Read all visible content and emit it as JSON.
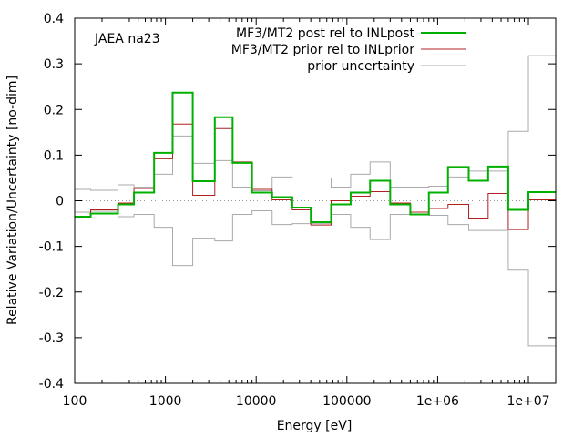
{
  "chart_data": {
    "type": "line",
    "step": true,
    "annotation": "JAEA na23",
    "xlabel": "Energy [eV]",
    "ylabel": "Relative Variation/Uncertainty [no-dim]",
    "xscale": "log",
    "xlim": [
      100,
      20000000
    ],
    "ylim": [
      -0.4,
      0.4
    ],
    "xticks": [
      100,
      1000,
      10000,
      100000,
      1000000,
      10000000
    ],
    "xtick_labels": [
      "100",
      "1000",
      "10000",
      "100000",
      "1e+06",
      "1e+07"
    ],
    "yticks": [
      -0.4,
      -0.3,
      -0.2,
      -0.1,
      0,
      0.1,
      0.2,
      0.3,
      0.4
    ],
    "ytick_labels": [
      "-0.4",
      "-0.3",
      "-0.2",
      "-0.1",
      "0",
      "0.1",
      "0.2",
      "0.3",
      "0.4"
    ],
    "zero_line": true,
    "legend_position": "top-right",
    "bin_edges": [
      100,
      150,
      300,
      450,
      750,
      1200,
      2000,
      3500,
      5500,
      9000,
      15000,
      25000,
      40000,
      67000,
      110000,
      180000,
      300000,
      500000,
      800000,
      1300000,
      2200000,
      3600000,
      6000000,
      10000000,
      20000000
    ],
    "series": [
      {
        "name": "MF3/MT2 post rel to INLpost",
        "color": "#00b000",
        "symmetric_band": false,
        "values": [
          -0.035,
          -0.028,
          -0.008,
          0.018,
          0.105,
          0.237,
          0.043,
          0.183,
          0.083,
          0.018,
          0.008,
          -0.015,
          -0.047,
          -0.008,
          0.018,
          0.044,
          -0.008,
          -0.03,
          0.018,
          0.074,
          0.044,
          0.075,
          -0.02,
          0.019
        ]
      },
      {
        "name": "MF3/MT2 prior rel to INLprior",
        "color": "#b02020",
        "symmetric_band": false,
        "values": [
          -0.035,
          -0.02,
          -0.005,
          0.027,
          0.092,
          0.168,
          0.012,
          0.158,
          0.085,
          0.025,
          0.002,
          -0.02,
          -0.053,
          0.0,
          0.01,
          0.02,
          -0.005,
          -0.025,
          -0.017,
          -0.008,
          -0.038,
          0.016,
          -0.063,
          0.002
        ]
      },
      {
        "name": "prior uncertainty",
        "color": "#aaaaaa",
        "symmetric_band": true,
        "values": [
          0.025,
          0.023,
          0.035,
          0.03,
          0.058,
          0.142,
          0.082,
          0.088,
          0.03,
          0.022,
          0.052,
          0.05,
          0.05,
          0.03,
          0.058,
          0.085,
          0.03,
          0.03,
          0.032,
          0.052,
          0.065,
          0.065,
          0.152,
          0.318
        ]
      }
    ]
  }
}
